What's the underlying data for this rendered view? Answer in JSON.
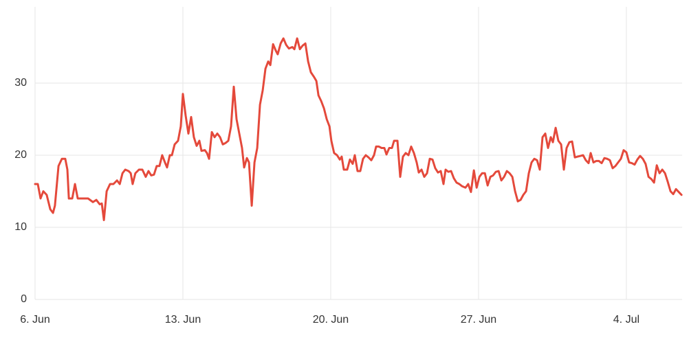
{
  "chart_data": {
    "type": "line",
    "color": "#e4493b",
    "grid": true,
    "xlim": [
      0,
      30.64
    ],
    "ylim": [
      0,
      40
    ],
    "xticks": [
      {
        "value": 0,
        "label": "6. Jun"
      },
      {
        "value": 7,
        "label": "13. Jun"
      },
      {
        "value": 14,
        "label": "20. Jun"
      },
      {
        "value": 21,
        "label": "27. Jun"
      },
      {
        "value": 28,
        "label": "4. Jul"
      }
    ],
    "yticks": [
      0,
      10,
      20,
      30
    ],
    "x": [
      0,
      0.13,
      0.26,
      0.39,
      0.55,
      0.72,
      0.85,
      0.94,
      1.11,
      1.27,
      1.43,
      1.53,
      1.6,
      1.76,
      1.89,
      2.02,
      2.18,
      2.31,
      2.51,
      2.74,
      2.9,
      3.06,
      3.16,
      3.26,
      3.39,
      3.55,
      3.71,
      3.88,
      4.01,
      4.14,
      4.27,
      4.43,
      4.53,
      4.62,
      4.75,
      4.92,
      5.08,
      5.24,
      5.37,
      5.5,
      5.63,
      5.76,
      5.89,
      6.02,
      6.15,
      6.25,
      6.38,
      6.48,
      6.61,
      6.77,
      6.9,
      7.0,
      7.13,
      7.26,
      7.39,
      7.52,
      7.65,
      7.78,
      7.88,
      8.04,
      8.14,
      8.24,
      8.37,
      8.5,
      8.63,
      8.76,
      8.89,
      9.02,
      9.15,
      9.28,
      9.41,
      9.54,
      9.67,
      9.8,
      9.9,
      10.03,
      10.13,
      10.26,
      10.39,
      10.52,
      10.65,
      10.78,
      10.91,
      11.04,
      11.14,
      11.27,
      11.4,
      11.49,
      11.63,
      11.76,
      11.89,
      12.02,
      12.18,
      12.28,
      12.41,
      12.54,
      12.67,
      12.8,
      12.93,
      13.06,
      13.22,
      13.32,
      13.42,
      13.55,
      13.68,
      13.81,
      13.94,
      14.03,
      14.16,
      14.3,
      14.43,
      14.52,
      14.62,
      14.78,
      14.91,
      15.04,
      15.14,
      15.27,
      15.4,
      15.53,
      15.66,
      15.79,
      15.92,
      16.05,
      16.15,
      16.28,
      16.41,
      16.54,
      16.64,
      16.77,
      16.9,
      17.0,
      17.16,
      17.29,
      17.42,
      17.55,
      17.68,
      17.81,
      17.94,
      18.07,
      18.17,
      18.3,
      18.43,
      18.56,
      18.69,
      18.82,
      18.95,
      19.08,
      19.21,
      19.34,
      19.44,
      19.57,
      19.7,
      19.83,
      19.96,
      20.09,
      20.22,
      20.38,
      20.51,
      20.64,
      20.78,
      20.91,
      21.04,
      21.17,
      21.3,
      21.43,
      21.56,
      21.69,
      21.82,
      21.95,
      22.08,
      22.21,
      22.34,
      22.47,
      22.6,
      22.73,
      22.86,
      22.99,
      23.12,
      23.25,
      23.38,
      23.51,
      23.64,
      23.77,
      23.9,
      24.03,
      24.16,
      24.29,
      24.42,
      24.52,
      24.65,
      24.78,
      24.91,
      25.04,
      25.17,
      25.3,
      25.43,
      25.56,
      25.69,
      25.82,
      25.95,
      26.08,
      26.21,
      26.31,
      26.44,
      26.57,
      26.7,
      26.83,
      26.96,
      27.09,
      27.22,
      27.35,
      27.48,
      27.61,
      27.74,
      27.87,
      28.0,
      28.13,
      28.26,
      28.39,
      28.52,
      28.65,
      28.78,
      28.91,
      29.05,
      29.18,
      29.31,
      29.44,
      29.57,
      29.7,
      29.83,
      29.96,
      30.09,
      30.22,
      30.35,
      30.48,
      30.61
    ],
    "values": [
      16,
      16,
      14,
      15,
      14.5,
      12.5,
      12,
      13,
      18.5,
      19.5,
      19.5,
      18,
      14,
      14,
      16,
      14,
      14,
      14,
      14,
      13.5,
      13.8,
      13.2,
      13.3,
      11,
      15,
      16,
      16,
      16.5,
      16,
      17.5,
      18,
      17.8,
      17.5,
      16,
      17.5,
      18,
      18,
      17,
      17.8,
      17.2,
      17.3,
      18.5,
      18.5,
      20,
      19,
      18.3,
      20,
      20,
      21.5,
      22,
      24,
      28.5,
      25.5,
      23,
      25.3,
      22.5,
      21.3,
      22,
      20.6,
      20.7,
      20.3,
      19.5,
      23.2,
      22.5,
      23,
      22.5,
      21.5,
      21.7,
      22,
      24,
      29.5,
      25,
      23,
      21,
      18.3,
      19.6,
      19,
      13,
      19,
      21,
      27,
      29,
      32,
      33,
      32.5,
      35.4,
      34.5,
      34,
      35.5,
      36.2,
      35.3,
      34.8,
      35,
      34.7,
      36.2,
      34.7,
      35.2,
      35.5,
      33,
      31.5,
      30.8,
      30.3,
      28.3,
      27.5,
      26.5,
      25,
      24,
      22,
      20.3,
      20,
      19.4,
      19.8,
      18,
      18,
      19.4,
      18.8,
      20,
      17.8,
      17.8,
      19.5,
      20,
      19.7,
      19.3,
      20,
      21.2,
      21.2,
      21,
      21,
      20.1,
      21,
      21,
      22,
      22,
      17,
      19.8,
      20.3,
      20,
      21.2,
      20.3,
      19,
      17.6,
      18,
      17,
      17.5,
      19.5,
      19.4,
      18.2,
      17.6,
      17.8,
      16,
      18,
      17.7,
      17.8,
      16.8,
      16.2,
      16,
      15.7,
      15.5,
      16,
      14.9,
      17.9,
      15.5,
      17,
      17.5,
      17.5,
      15.8,
      17,
      17.2,
      17.7,
      17.8,
      16.5,
      17,
      17.8,
      17.5,
      17,
      15,
      13.6,
      13.8,
      14.5,
      15,
      17.5,
      19,
      19.5,
      19.3,
      18,
      22.5,
      23,
      21,
      22.5,
      21.8,
      23.8,
      22,
      21.5,
      18,
      21,
      21.8,
      21.9,
      19.7,
      19.8,
      19.9,
      20,
      19.3,
      18.9,
      20.3,
      19,
      19.2,
      19.2,
      18.9,
      19.6,
      19.5,
      19.3,
      18.2,
      18.5,
      19,
      19.5,
      20.7,
      20.4,
      19,
      18.9,
      18.7,
      19.4,
      19.9,
      19.5,
      18.8,
      17,
      16.7,
      16.2,
      18.6,
      17.5,
      18,
      17.5,
      16.3,
      15,
      14.6,
      15.3,
      14.9,
      14.5
    ]
  }
}
